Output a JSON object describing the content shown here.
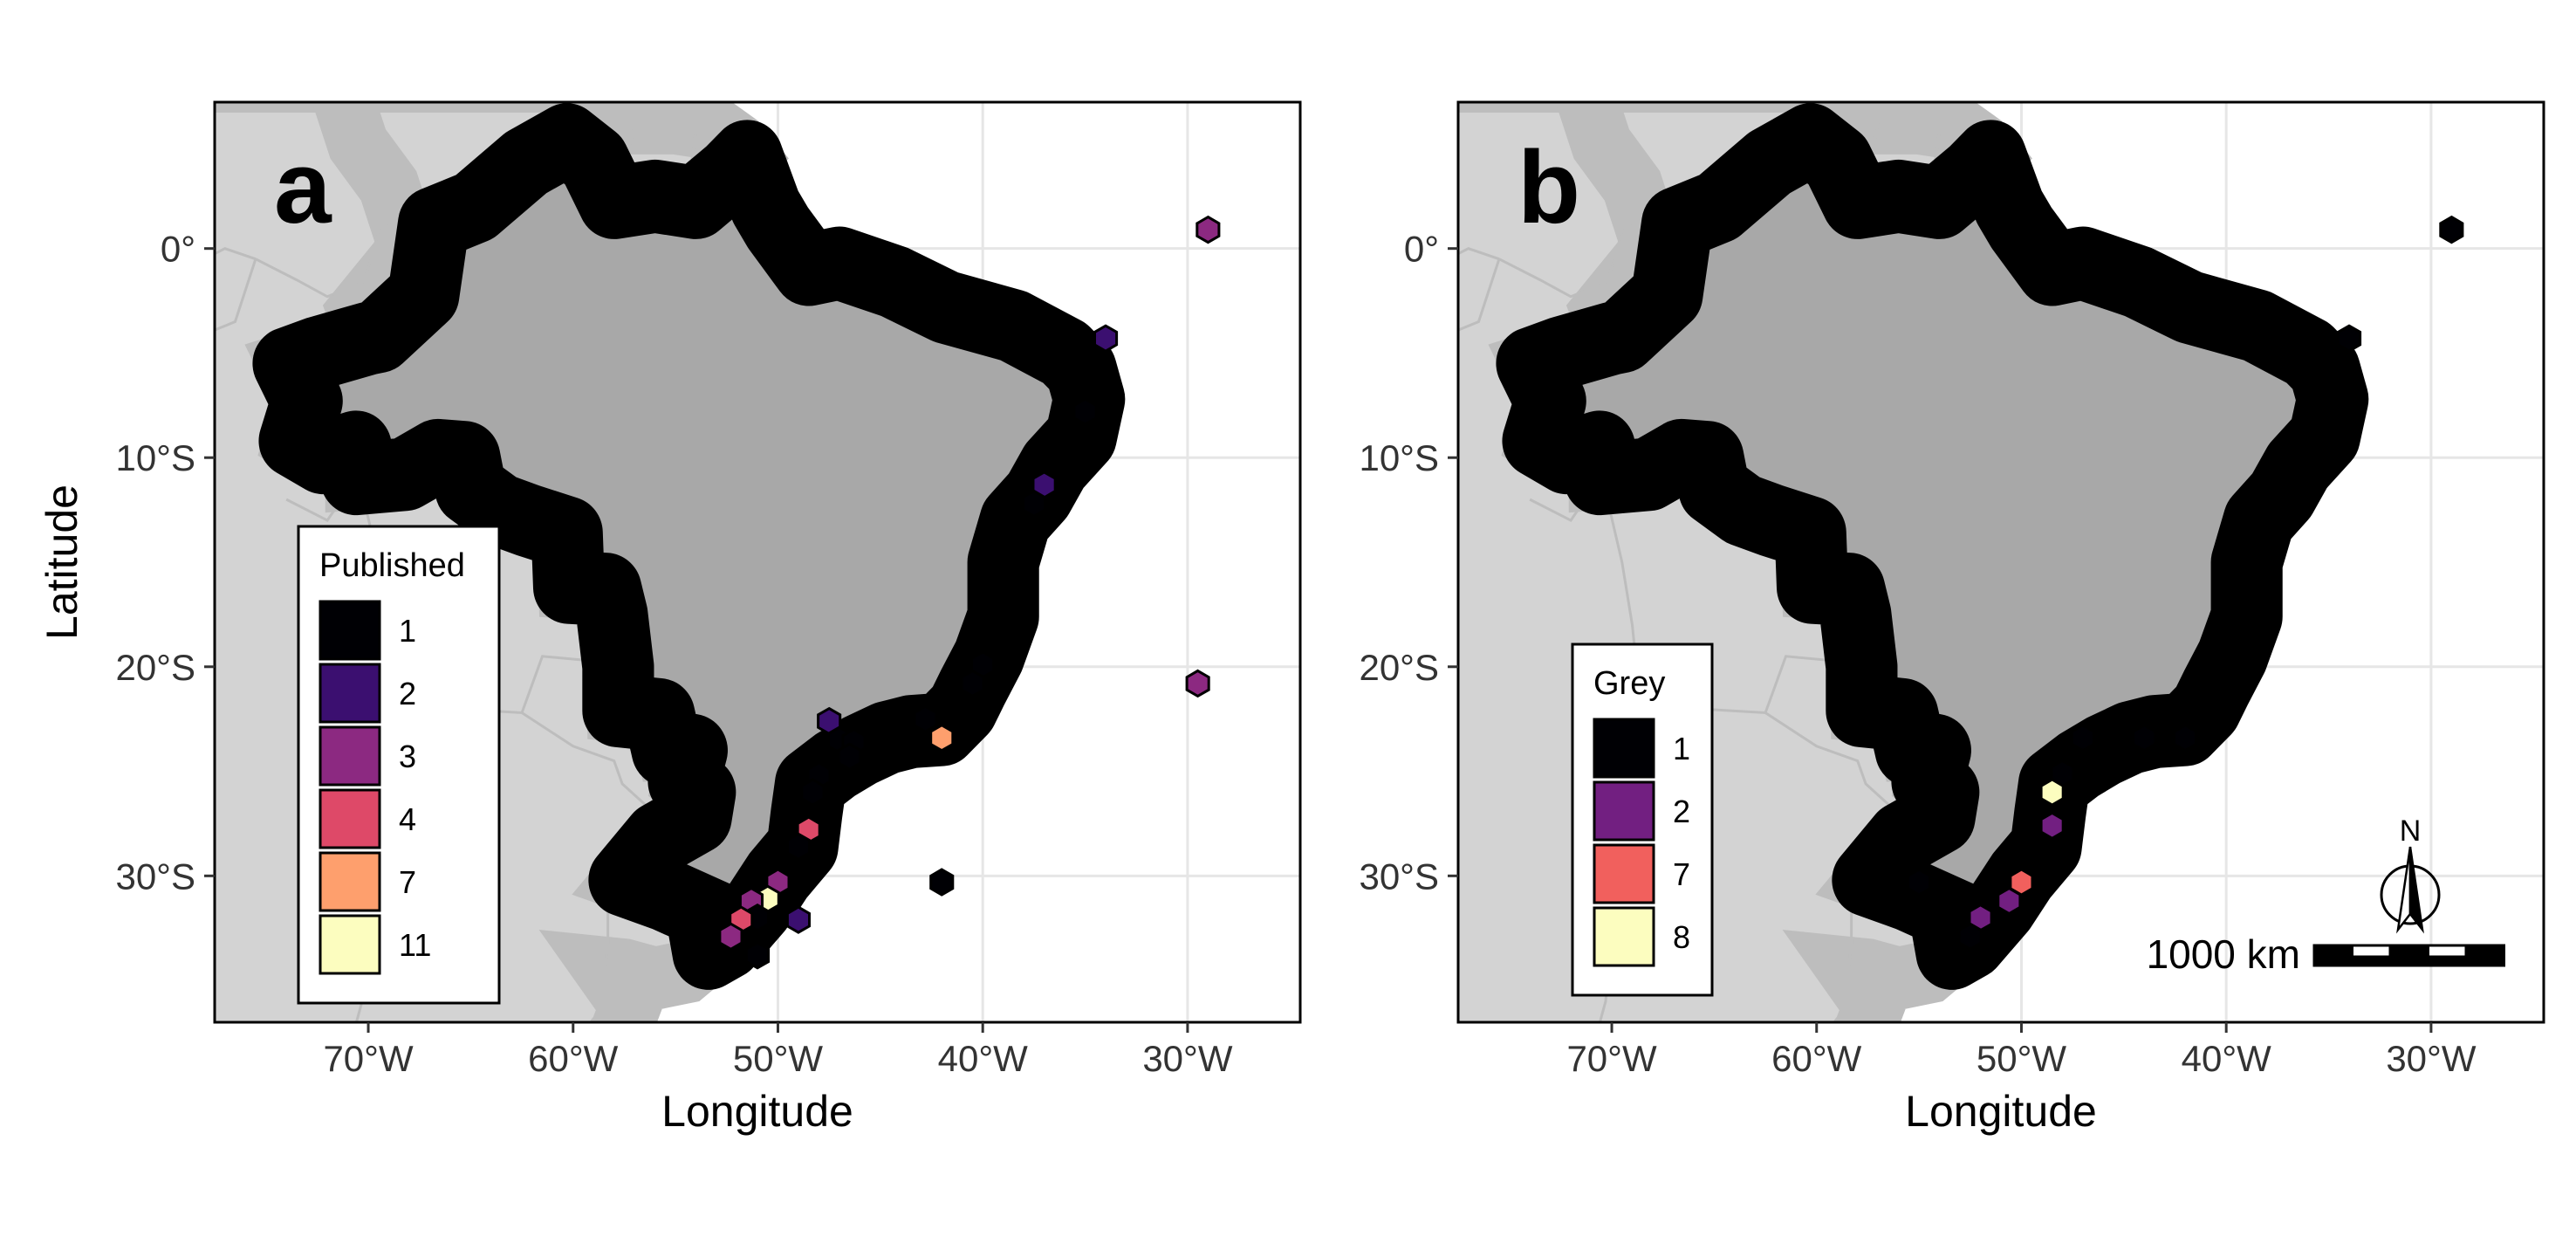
{
  "figure": {
    "axis_labels": {
      "x": "Longitude",
      "y": "Latitude"
    },
    "x_ticks": [
      {
        "value": -70,
        "label": "70°W"
      },
      {
        "value": -60,
        "label": "60°W"
      },
      {
        "value": -50,
        "label": "50°W"
      },
      {
        "value": -40,
        "label": "40°W"
      },
      {
        "value": -30,
        "label": "30°W"
      }
    ],
    "y_ticks": [
      {
        "value": 0,
        "label": "0°"
      },
      {
        "value": -10,
        "label": "10°S"
      },
      {
        "value": -20,
        "label": "20°S"
      },
      {
        "value": -30,
        "label": "30°S"
      }
    ],
    "colors": {
      "highlight_country": "#a8a8a8",
      "neighbor_land": "#d3d3d3",
      "neighbor_border": "#bdbdbd",
      "ocean": "#ffffff",
      "grid": "#e6e6e6"
    }
  },
  "chart_data": [
    {
      "type": "map",
      "panel": "a",
      "tag": "a",
      "xlim": [
        -77.5,
        -24.5
      ],
      "ylim": [
        -37,
        7
      ],
      "grid": true,
      "legend": {
        "title": "Published",
        "position": "bottom-left",
        "items": [
          {
            "label": "1",
            "value": 1,
            "color": "#000004"
          },
          {
            "label": "2",
            "value": 2,
            "color": "#3b0f70"
          },
          {
            "label": "3",
            "value": 3,
            "color": "#8c2981"
          },
          {
            "label": "4",
            "value": 4,
            "color": "#de4968"
          },
          {
            "label": "7",
            "value": 7,
            "color": "#fe9f6d"
          },
          {
            "label": "11",
            "value": 11,
            "color": "#fcfdbf"
          }
        ]
      },
      "points": [
        {
          "lon": -29.0,
          "lat": 0.9,
          "count": 3
        },
        {
          "lon": -34.0,
          "lat": -4.3,
          "count": 2
        },
        {
          "lon": -35.0,
          "lat": -7.8,
          "count": 1
        },
        {
          "lon": -37.0,
          "lat": -11.3,
          "count": 2
        },
        {
          "lon": -37.5,
          "lat": -12.2,
          "count": 1
        },
        {
          "lon": -40.0,
          "lat": -19.9,
          "count": 1
        },
        {
          "lon": -40.5,
          "lat": -20.8,
          "count": 1
        },
        {
          "lon": -29.5,
          "lat": -20.8,
          "count": 3
        },
        {
          "lon": -42.8,
          "lat": -22.5,
          "count": 1
        },
        {
          "lon": -42.0,
          "lat": -23.4,
          "count": 7
        },
        {
          "lon": -47.5,
          "lat": -22.6,
          "count": 2
        },
        {
          "lon": -47.0,
          "lat": -23.5,
          "count": 1
        },
        {
          "lon": -46.3,
          "lat": -23.6,
          "count": 1
        },
        {
          "lon": -46.5,
          "lat": -24.3,
          "count": 1
        },
        {
          "lon": -48.0,
          "lat": -25.2,
          "count": 1
        },
        {
          "lon": -48.3,
          "lat": -26.0,
          "count": 1
        },
        {
          "lon": -48.5,
          "lat": -27.8,
          "count": 4
        },
        {
          "lon": -49.0,
          "lat": -28.6,
          "count": 1
        },
        {
          "lon": -42.0,
          "lat": -30.3,
          "count": 1
        },
        {
          "lon": -50.0,
          "lat": -30.3,
          "count": 3
        },
        {
          "lon": -50.5,
          "lat": -31.1,
          "count": 11
        },
        {
          "lon": -51.3,
          "lat": -31.2,
          "count": 3
        },
        {
          "lon": -51.0,
          "lat": -32.0,
          "count": 1
        },
        {
          "lon": -49.0,
          "lat": -32.1,
          "count": 2
        },
        {
          "lon": -51.8,
          "lat": -32.1,
          "count": 4
        },
        {
          "lon": -52.3,
          "lat": -32.9,
          "count": 3
        },
        {
          "lon": -51.0,
          "lat": -33.8,
          "count": 1
        }
      ]
    },
    {
      "type": "map",
      "panel": "b",
      "tag": "b",
      "xlim": [
        -77.5,
        -24.5
      ],
      "ylim": [
        -37,
        7
      ],
      "grid": true,
      "legend": {
        "title": "Grey",
        "position": "bottom-left",
        "items": [
          {
            "label": "1",
            "value": 1,
            "color": "#000004"
          },
          {
            "label": "2",
            "value": 2,
            "color": "#721f81"
          },
          {
            "label": "7",
            "value": 7,
            "color": "#f1605d"
          },
          {
            "label": "8",
            "value": 8,
            "color": "#fcfdbf"
          }
        ]
      },
      "points": [
        {
          "lon": -29.0,
          "lat": 0.9,
          "count": 1
        },
        {
          "lon": -34.0,
          "lat": -4.3,
          "count": 1
        },
        {
          "lon": -47.0,
          "lat": -23.4,
          "count": 1
        },
        {
          "lon": -44.0,
          "lat": -23.4,
          "count": 1
        },
        {
          "lon": -42.0,
          "lat": -23.4,
          "count": 1
        },
        {
          "lon": -48.0,
          "lat": -25.1,
          "count": 1
        },
        {
          "lon": -48.5,
          "lat": -26.0,
          "count": 8
        },
        {
          "lon": -48.5,
          "lat": -27.6,
          "count": 2
        },
        {
          "lon": -55.0,
          "lat": -30.3,
          "count": 1
        },
        {
          "lon": -50.0,
          "lat": -30.3,
          "count": 7
        },
        {
          "lon": -50.6,
          "lat": -31.2,
          "count": 2
        },
        {
          "lon": -52.0,
          "lat": -32.0,
          "count": 2
        },
        {
          "lon": -52.5,
          "lat": -32.9,
          "count": 1
        }
      ],
      "north_arrow": {
        "label": "N"
      },
      "scale_bar": {
        "label": "1000 km"
      }
    }
  ]
}
